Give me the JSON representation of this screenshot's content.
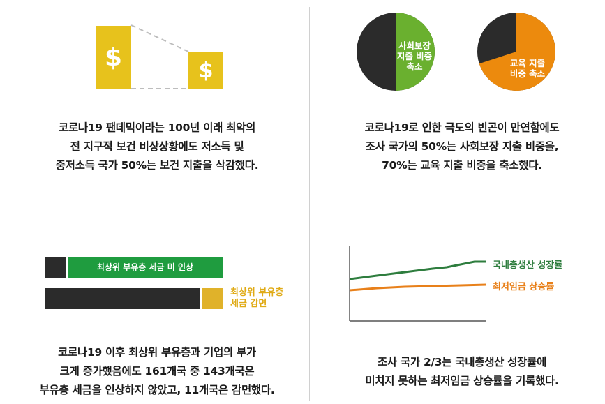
{
  "panel1": {
    "icon_left": "dollar-sign-icon",
    "icon_right": "dollar-sign-icon",
    "caption": [
      "코로나19 팬데믹이라는 100년 이래 최악의",
      "전 지구적 보건 비상상황에도 저소득 및",
      "중저소득 국가 50%는 보건 지출을 삭감했다."
    ]
  },
  "panel2": {
    "pie1_label": [
      "사회보장",
      "지출 비중",
      "축소"
    ],
    "pie2_label": [
      "교육 지출",
      "비중 축소"
    ],
    "pie1_share": 0.5,
    "pie2_share": 0.7,
    "caption": [
      "코로나19로 인한 극도의 빈곤이 만연함에도",
      "조사 국가의 50%는 사회보장 지출 비중을,",
      "70%는 교육 지출 비중을 축소했다."
    ]
  },
  "panel3": {
    "green_bar_label": "최상위 부유층 세금 미 인상",
    "yellow_label": [
      "최상위 부유층",
      "세금 감면"
    ],
    "caption": [
      "코로나19 이후 최상위 부유층과 기업의 부가",
      "크게 증가했음에도 161개국 중 143개국은",
      "부유층 세금을 인상하지 않았고, 11개국은 감면했다."
    ]
  },
  "panel4": {
    "legend_green": "국내총생산 성장률",
    "legend_orange": "최저임금 상승률",
    "caption": [
      "조사 국가 2/3는 국내총생산 성장률에",
      "미치지 못하는 최저임금 상승률을 기록했다."
    ]
  },
  "colors": {
    "yellow": "#e7c21c",
    "dark": "#2b2b2b",
    "green": "#6ab02f",
    "bar_green": "#1f9c3f",
    "orange": "#ec8a0d",
    "line_green": "#2e7d3e",
    "line_orange": "#e8801a"
  }
}
